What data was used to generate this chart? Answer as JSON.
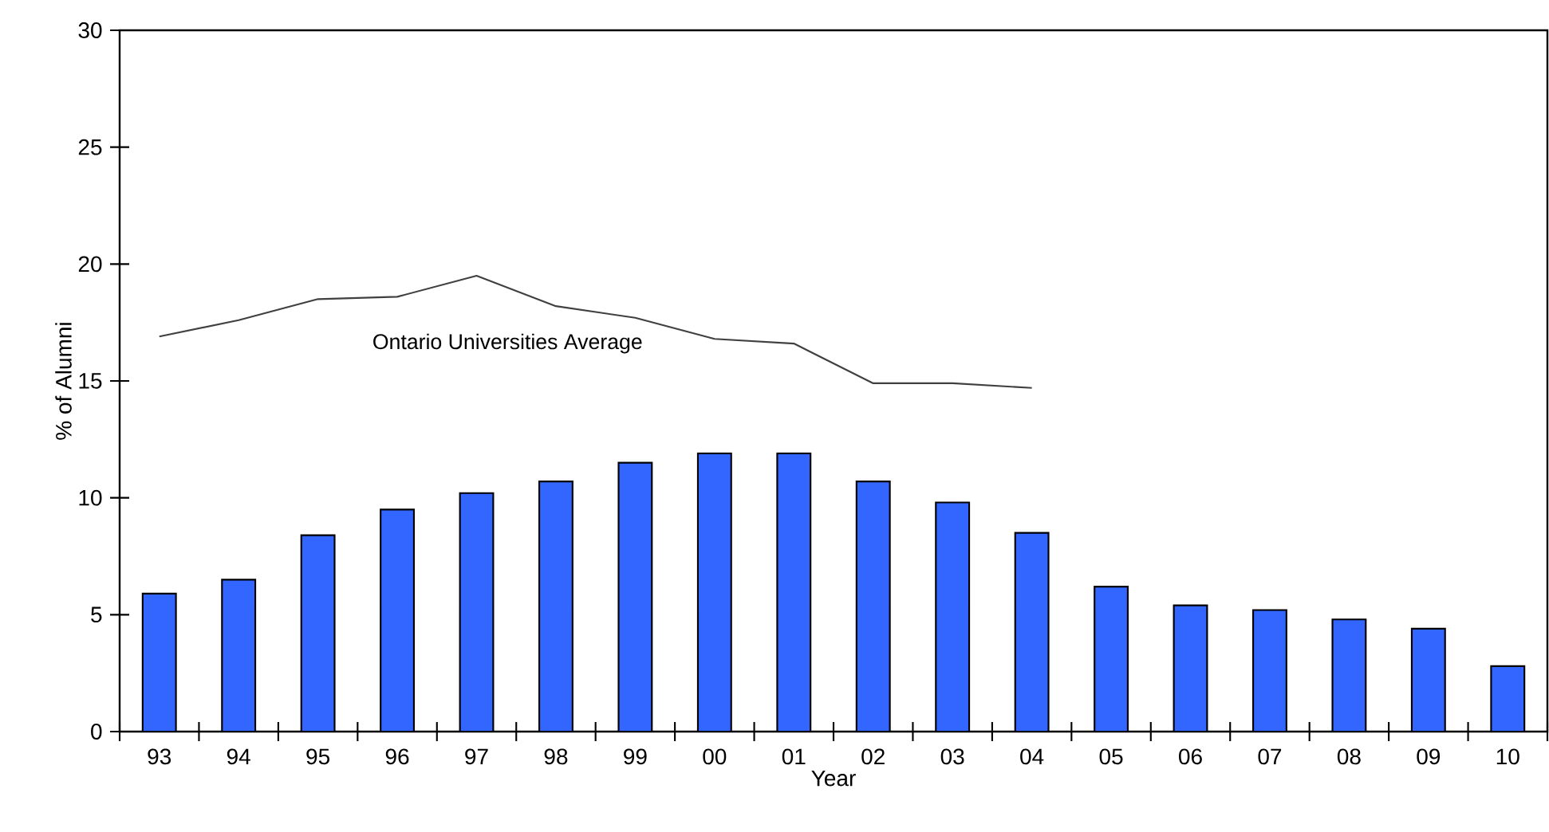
{
  "chart_data": {
    "type": "bar",
    "xlabel": "Year",
    "ylabel": "% of Alumni",
    "categories": [
      "93",
      "94",
      "95",
      "96",
      "97",
      "98",
      "99",
      "00",
      "01",
      "02",
      "03",
      "04",
      "05",
      "06",
      "07",
      "08",
      "09",
      "10"
    ],
    "series": [
      {
        "color": "#3366ff",
        "values": [
          5.9,
          6.5,
          8.4,
          9.5,
          10.2,
          10.7,
          11.5,
          11.9,
          11.9,
          10.7,
          9.8,
          8.5,
          6.2,
          5.4,
          5.2,
          4.8,
          4.4,
          2.8
        ]
      },
      {
        "type": "line",
        "name": "Ontario Universities Average",
        "color": "#404040",
        "values": [
          16.9,
          17.6,
          18.5,
          18.6,
          19.5,
          18.2,
          17.7,
          16.8,
          16.6,
          14.9,
          14.9,
          14.7,
          null,
          null,
          null,
          null,
          null,
          null
        ]
      }
    ],
    "ylim": [
      0,
      30
    ],
    "yticks": [
      0,
      5,
      10,
      15,
      20,
      25,
      30
    ],
    "grid": false,
    "legend": false
  }
}
